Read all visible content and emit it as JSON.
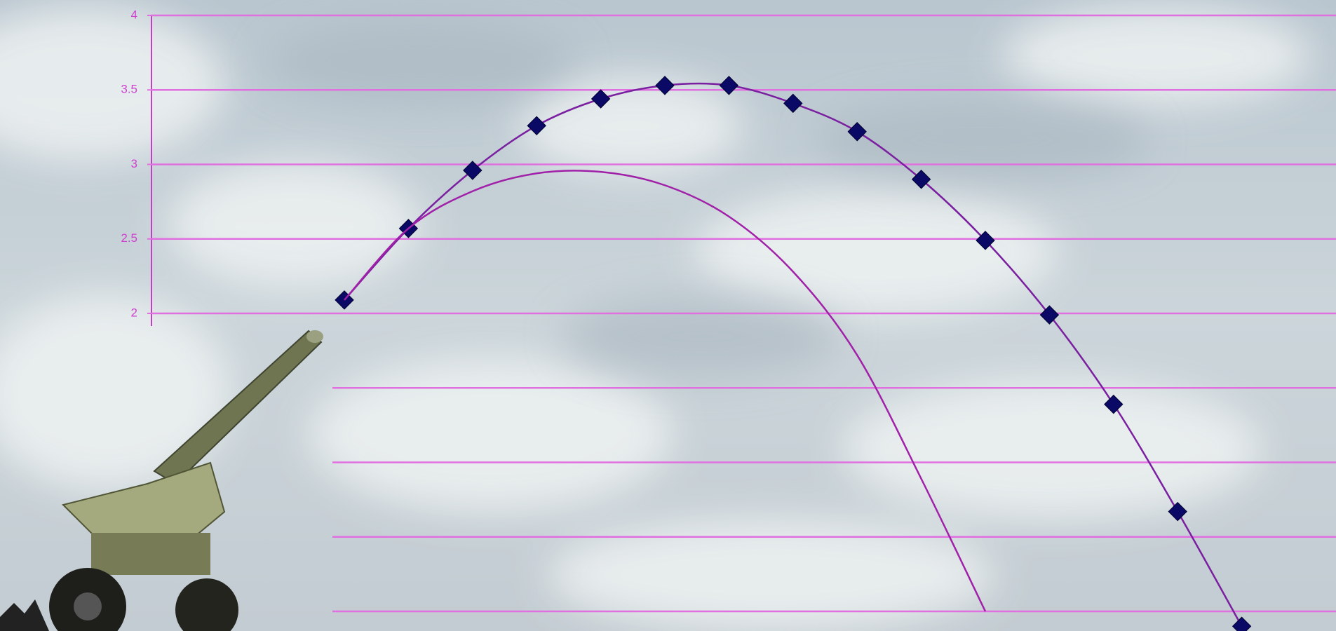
{
  "chart_data": {
    "type": "line",
    "categories": [
      null,
      null,
      null,
      null,
      null,
      null,
      null,
      null,
      null,
      null,
      null,
      null,
      null,
      null,
      null
    ],
    "series": [
      {
        "color": "#7a1fa0",
        "marker_color": "#0a0a66",
        "marker": "diamond",
        "values": [
          2.09,
          2.57,
          2.96,
          3.26,
          3.44,
          3.53,
          3.53,
          3.41,
          3.22,
          2.9,
          2.49,
          1.99,
          1.39,
          0.67,
          -0.1
        ]
      },
      {
        "color": "#a020a8",
        "marker": "none",
        "values": [
          2.09,
          2.57,
          2.82,
          2.94,
          2.95,
          2.86,
          2.65,
          2.28,
          1.72,
          0.89,
          0,
          null,
          null,
          null,
          null
        ]
      }
    ],
    "ylim": [
      0,
      4
    ],
    "yticks": [
      {
        "value": 0,
        "label": null
      },
      {
        "value": 0.5,
        "label": null
      },
      {
        "value": 1,
        "label": null
      },
      {
        "value": 1.5,
        "label": null
      },
      2,
      2.5,
      3,
      3.5,
      4
    ],
    "grid": true,
    "grid_color": "#e070e0"
  }
}
